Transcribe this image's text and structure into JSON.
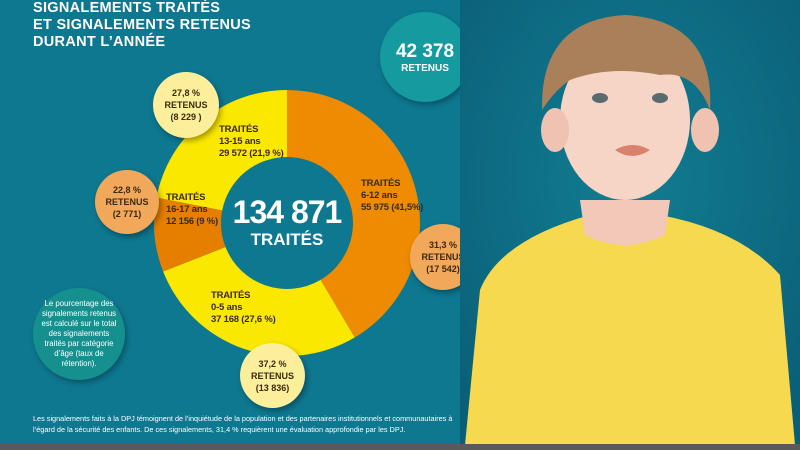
{
  "title": [
    "SIGNALEMENTS TRAITÉS",
    "ET SIGNALEMENTS RETENUS",
    "DURANT L’ANNÉE"
  ],
  "total_retenus": {
    "value": "42 378",
    "label": "RETENUS"
  },
  "center": {
    "value": "134 871",
    "label": "TRAITÉS"
  },
  "note": "Le pourcentage des signalements retenus est calculé sur le total des signalements traités par catégorie d’âge (taux de rétention).",
  "footer": "Les signalements faits à la DPJ témoignent de l’inquiétude de la population et des partenaires institutionnels et communautaires à l’égard de la sécurité des enfants. De ces signalements, 31,4 % requièrent une évaluation approfondie par les DPJ.",
  "colors": {
    "background": "#0e7891",
    "yellow": "#fbe800",
    "orange": "#ef8b00",
    "orange_dark": "#e67e00"
  },
  "chart_data": {
    "type": "pie",
    "title": "134 871 TRAITÉS",
    "categories": [
      "6-12 ans",
      "0-5 ans",
      "16-17 ans",
      "13-15 ans"
    ],
    "values": [
      55975,
      37168,
      12156,
      29572
    ],
    "percents": [
      41.5,
      27.6,
      9,
      21.9
    ],
    "segments": [
      {
        "head": "TRAITÉS",
        "age": "6-12 ans",
        "value": "55 975 (41,5%)",
        "color": "#ef8b00",
        "retenus": {
          "pct": "31,3 %",
          "label": "RETENUS",
          "count": "(17 542)"
        }
      },
      {
        "head": "TRAITÉS",
        "age": "0-5 ans",
        "value": "37 168 (27,6 %)",
        "color": "#fbe800",
        "retenus": {
          "pct": "37,2 %",
          "label": "RETENUS",
          "count": "(13 836)"
        }
      },
      {
        "head": "TRAITÉS",
        "age": "16-17 ans",
        "value": "12 156 (9 %)",
        "color": "#e67e00",
        "retenus": {
          "pct": "22,8 %",
          "label": "RETENUS",
          "count": "(2 771)"
        }
      },
      {
        "head": "TRAITÉS",
        "age": "13-15 ans",
        "value": "29 572 (21,9 %)",
        "color": "#fbe800",
        "retenus": {
          "pct": "27,8 %",
          "label": "RETENUS",
          "count": "(8 229 )"
        }
      }
    ]
  }
}
